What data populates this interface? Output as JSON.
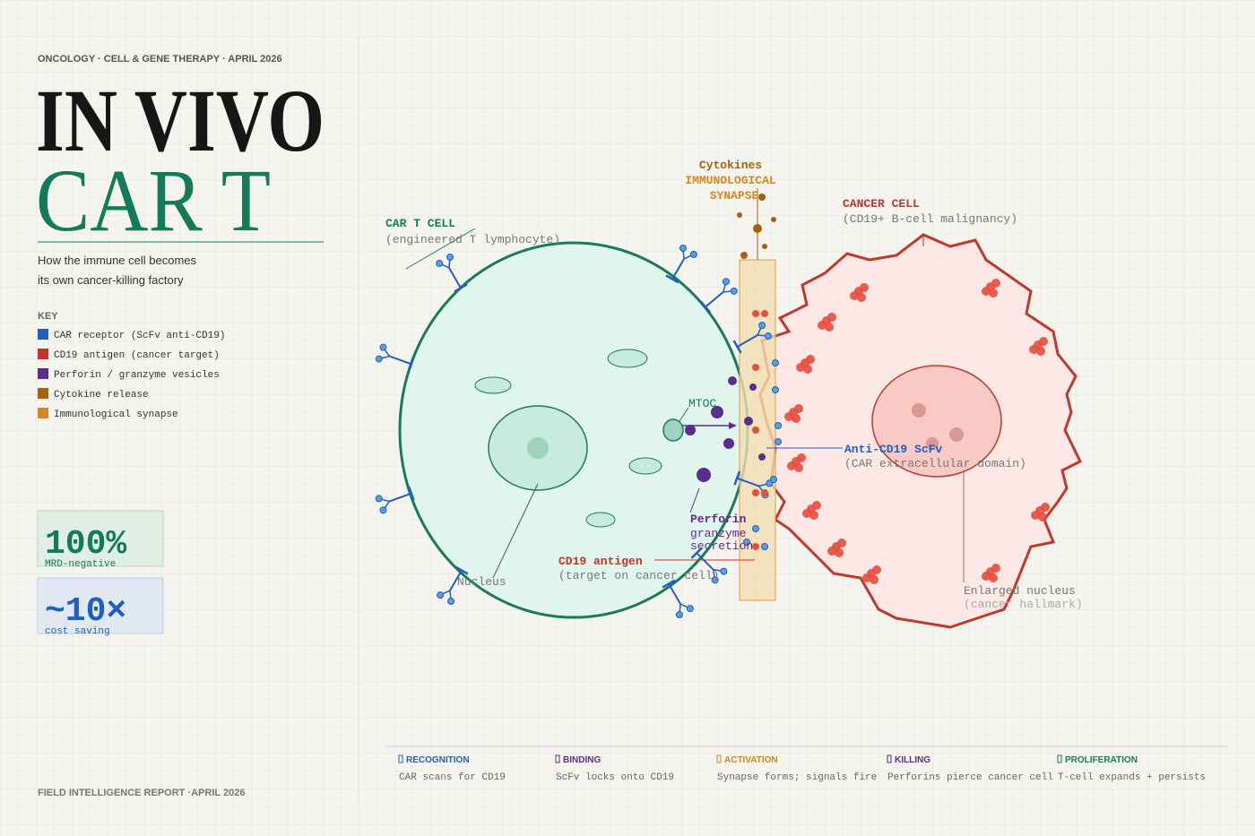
{
  "header": {
    "kicker": "ONCOLOGY · CELL & GENE THERAPY · APRIL 2026",
    "title_line1": "IN VIVO",
    "title_line2": "CAR T",
    "subtitle": [
      "How the immune cell becomes",
      "its own cancer-killing factory"
    ]
  },
  "key": {
    "title": "KEY",
    "items": [
      {
        "label": "CAR receptor (ScFv anti-CD19)",
        "color": "#1f5fbf"
      },
      {
        "label": "CD19 antigen (cancer target)",
        "color": "#c8312a"
      },
      {
        "label": "Perforin / granzyme vesicles",
        "color": "#5b2d8e"
      },
      {
        "label": "Cytokine release",
        "color": "#a8620f"
      },
      {
        "label": "Immunological synapse",
        "color": "#d4861f"
      }
    ]
  },
  "stats": [
    {
      "value": "100%",
      "label": "MRD-negative"
    },
    {
      "value": "~10×",
      "label": "cost saving"
    }
  ],
  "footer": "FIELD INTELLIGENCE REPORT ·APRIL 2026",
  "diagram": {
    "car_t_cell": {
      "title": "CAR T CELL",
      "subtitle": "(engineered T lymphocyte)"
    },
    "cancer_cell": {
      "title": "CANCER CELL",
      "subtitle": "(CD19+ B-cell malignancy)"
    },
    "cytokines": "Cytokines",
    "synapse": [
      "IMMUNOLOGICAL",
      "SYNAPSE"
    ],
    "mtoc": "MTOC",
    "anti_cd19": {
      "title": "Anti-CD19 ScFv",
      "subtitle": "(CAR extracellular domain)"
    },
    "perforin": [
      "Perforin",
      "granzyme",
      "secretion"
    ],
    "cd19": {
      "title": "CD19 antigen",
      "subtitle": "(target on cancer cell)"
    },
    "nucleus": "Nucleus",
    "enlarged_nucleus": {
      "title": "Enlarged nucleus",
      "subtitle": "(cancer hallmark)"
    }
  },
  "steps": [
    {
      "title": "RECOGNITION",
      "text": "CAR scans for CD19",
      "color": "#1f5fbf"
    },
    {
      "title": "BINDING",
      "text": "ScFv locks onto CD19",
      "color": "#5b2d8e"
    },
    {
      "title": "ACTIVATION",
      "text": "Synapse forms; signals fire",
      "color": "#d4861f"
    },
    {
      "title": "KILLING",
      "text": "Perforins pierce cancer cell",
      "color": "#5b2d8e"
    },
    {
      "title": "PROLIFERATION",
      "text": "T-cell expands + persists",
      "color": "#1a7a5a"
    }
  ]
}
